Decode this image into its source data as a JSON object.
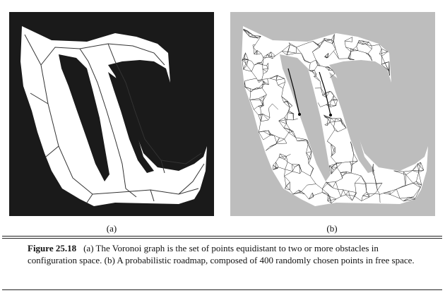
{
  "figure": {
    "panel_a": {
      "label": "(a)",
      "background": "#1a1a1a",
      "free_space": "#ffffff",
      "graph_color": "#333333"
    },
    "panel_b": {
      "label": "(b)",
      "background": "#bdbdbd",
      "free_space": "#ffffff",
      "graph_color": "#222222"
    },
    "caption": {
      "number": "Figure 25.18",
      "text": "(a) The Voronoi graph is the set of points equidistant to two or more obstacles in configuration space. (b) A probabilistic roadmap, composed of 400 randomly chosen points in free space."
    }
  }
}
